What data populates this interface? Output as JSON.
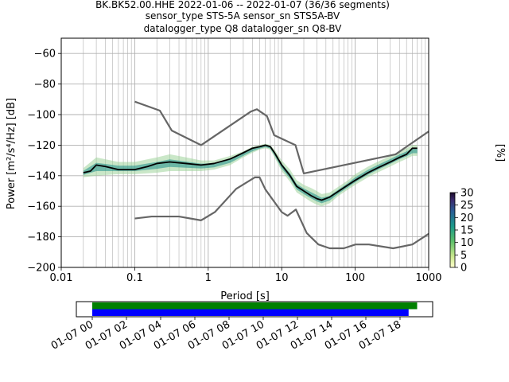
{
  "title_lines": [
    "BK.BK52.00.HHE   2022-01-06 -- 2022-01-07  (36/36 segments)",
    "sensor_type STS-5A sensor_sn STS5A-BV",
    "datalogger_type Q8 datalogger_sn Q8-BV"
  ],
  "colorbar": {
    "label": "[%]",
    "ticks": [
      "0",
      "5",
      "10",
      "15",
      "20",
      "25",
      "30"
    ],
    "range": [
      0,
      30
    ],
    "colormap": "pqlx-like"
  },
  "timeline": {
    "ticks": [
      "01-07 00",
      "01-07 02",
      "01-07 04",
      "01-07 06",
      "01-07 08",
      "01-07 10",
      "01-07 12",
      "01-07 14",
      "01-07 16",
      "01-07 18"
    ],
    "bars": [
      {
        "color": "#008000",
        "start_hour": 0.0,
        "end_hour": 19.0
      },
      {
        "color": "#0000ff",
        "start_hour": 0.0,
        "end_hour": 18.5
      }
    ]
  },
  "chart_data": {
    "type": "heatmap",
    "xlabel": "Period [s]",
    "ylabel": "Power [m²/s⁴/Hz] [dB]",
    "xscale": "log",
    "xlim": [
      0.01,
      1000
    ],
    "ylim": [
      -200,
      -50
    ],
    "x_ticks": [
      "0.01",
      "0.1",
      "1",
      "10",
      "100",
      "1000"
    ],
    "y_ticks": [
      "−200",
      "−180",
      "−160",
      "−140",
      "−120",
      "−100",
      "−80",
      "−60"
    ],
    "y_tick_values": [
      -200,
      -180,
      -160,
      -140,
      -120,
      -100,
      -80,
      -60
    ],
    "grid": true,
    "series": [
      {
        "role": "noise-model-high",
        "color": "#666666",
        "x": [
          0.1,
          0.22,
          0.32,
          0.8,
          3.8,
          4.6,
          6.3,
          7.9,
          15.4,
          20,
          354.8,
          1000
        ],
        "y": [
          -91.5,
          -97.4,
          -110.5,
          -120,
          -98,
          -96.5,
          -101,
          -113.5,
          -120,
          -138.5,
          -126,
          -111
        ]
      },
      {
        "role": "noise-model-low",
        "color": "#666666",
        "x": [
          0.1,
          0.17,
          0.4,
          0.8,
          1.24,
          2.4,
          4.3,
          5.0,
          6.0,
          10.0,
          12.0,
          15.6,
          21.9,
          31.6,
          45,
          70,
          101,
          154,
          328,
          600,
          1000
        ],
        "y": [
          -168,
          -166.7,
          -166.7,
          -169.2,
          -163.7,
          -148.6,
          -141.1,
          -141.1,
          -149,
          -163.8,
          -166.2,
          -162.1,
          -177.5,
          -185,
          -187.5,
          -187.5,
          -185,
          -185,
          -187.5,
          -185,
          -178
        ]
      },
      {
        "role": "mode",
        "color": "#000000",
        "x": [
          0.02,
          0.025,
          0.03,
          0.04,
          0.06,
          0.1,
          0.15,
          0.2,
          0.3,
          0.5,
          0.8,
          1.2,
          2,
          3,
          4,
          5,
          6,
          7,
          8,
          10,
          13,
          16,
          20,
          25,
          30,
          35,
          45,
          60,
          80,
          100,
          150,
          200,
          300,
          400,
          500,
          600,
          700
        ],
        "y": [
          -138,
          -137,
          -133,
          -134,
          -136,
          -136,
          -134,
          -132,
          -131,
          -132,
          -133,
          -132,
          -129,
          -125,
          -122,
          -121,
          -120,
          -121,
          -125,
          -133,
          -140,
          -147,
          -150,
          -153,
          -155,
          -156,
          -154,
          -150,
          -146,
          -143,
          -138,
          -135,
          -131,
          -128,
          -126,
          -122,
          -122
        ]
      }
    ],
    "density_bands": [
      {
        "x": [
          0.02,
          0.03,
          0.06,
          0.1,
          0.2,
          0.3,
          0.5,
          0.8,
          1.2,
          2,
          3,
          4,
          5,
          6,
          7,
          8,
          10,
          13,
          16,
          20,
          25,
          30,
          35,
          45,
          60,
          80,
          100,
          150,
          200,
          300,
          400,
          500,
          600,
          700
        ],
        "upper": [
          -135,
          -128,
          -131,
          -131,
          -128,
          -126,
          -128,
          -130,
          -130,
          -127,
          -124,
          -121,
          -120,
          -119,
          -120,
          -123,
          -130,
          -136,
          -143,
          -146,
          -148,
          -150,
          -152,
          -151,
          -147,
          -143,
          -139,
          -134,
          -131,
          -127,
          -124,
          -122,
          -120,
          -120
        ],
        "lower": [
          -141,
          -140,
          -139,
          -139,
          -138,
          -137,
          -137,
          -137,
          -136,
          -133,
          -128,
          -125,
          -123,
          -122,
          -123,
          -128,
          -137,
          -144,
          -151,
          -154,
          -157,
          -159,
          -160,
          -158,
          -153,
          -149,
          -146,
          -141,
          -138,
          -134,
          -131,
          -129,
          -127,
          -127
        ]
      }
    ]
  }
}
